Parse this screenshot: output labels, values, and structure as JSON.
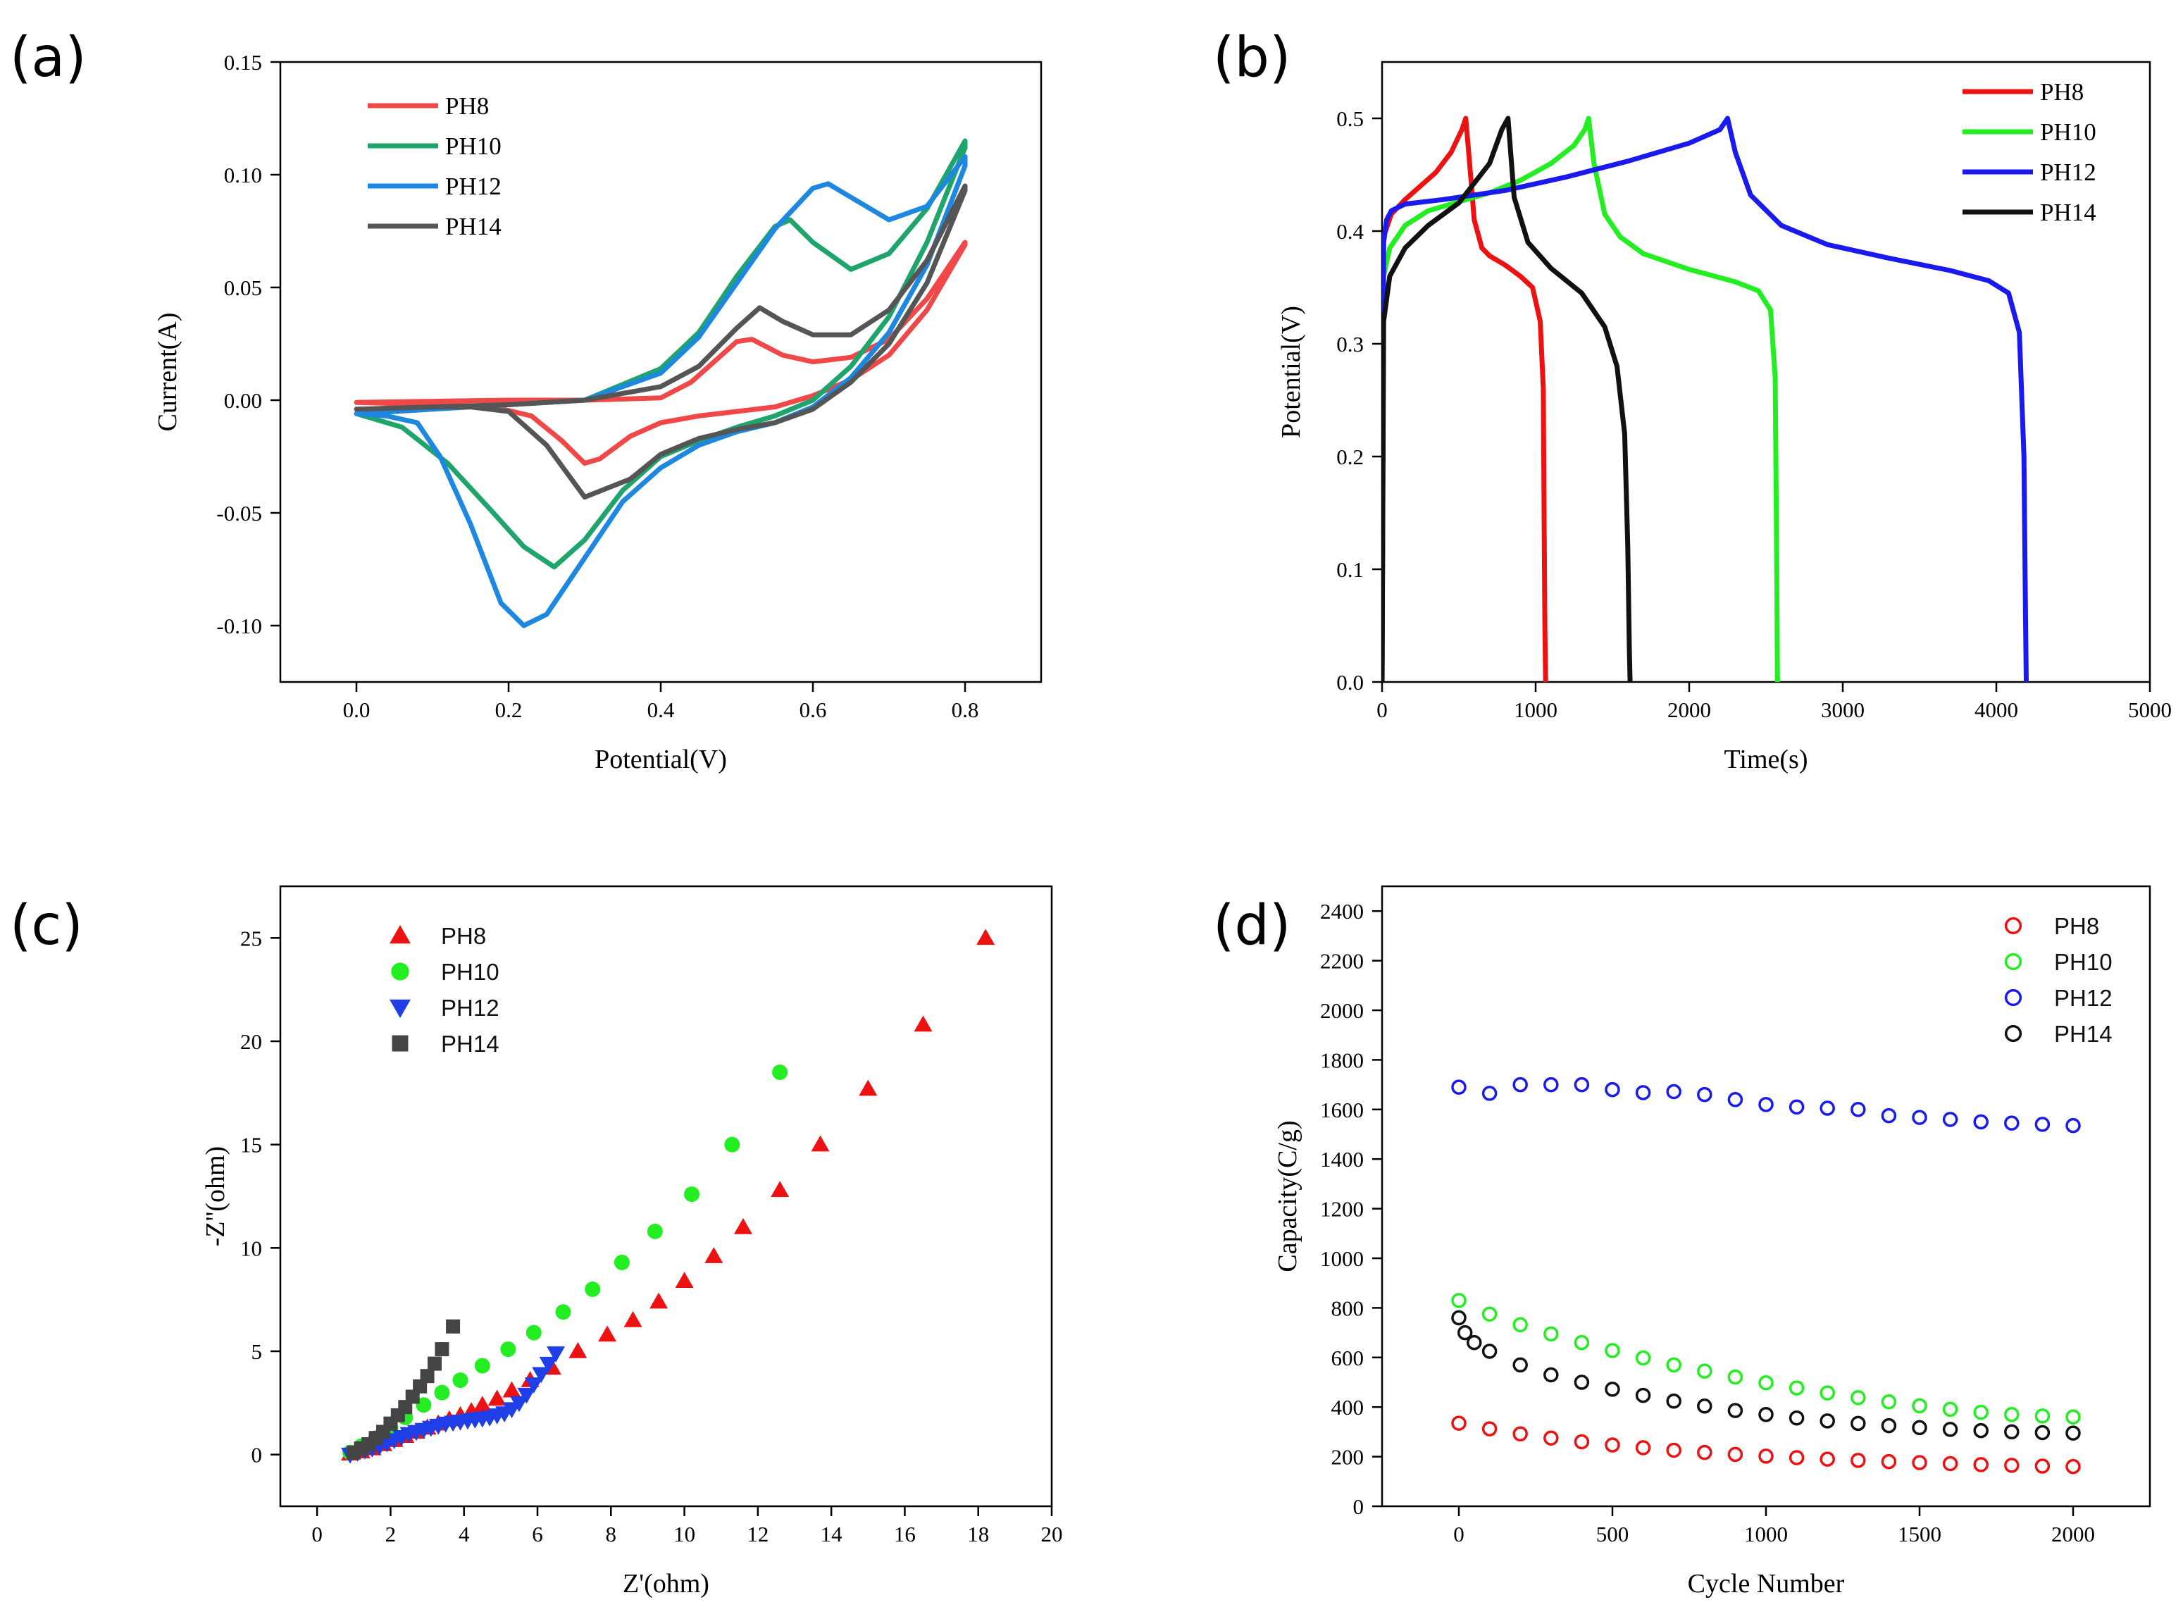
{
  "panels": {
    "a": "(a)",
    "b": "(b)",
    "c": "(c)",
    "d": "(d)"
  },
  "chart_data": [
    {
      "id": "a",
      "type": "line",
      "title": "",
      "xlabel": "Potential(V)",
      "ylabel": "Current(A)",
      "xlim": [
        -0.1,
        0.9
      ],
      "ylim": [
        -0.125,
        0.15
      ],
      "xticks": [
        0.0,
        0.2,
        0.4,
        0.6,
        0.8
      ],
      "xtick_labels": [
        "0.0",
        "0.2",
        "0.4",
        "0.6",
        "0.8"
      ],
      "yticks": [
        -0.1,
        -0.05,
        0.0,
        0.05,
        0.1,
        0.15
      ],
      "ytick_labels": [
        "-0.10",
        "-0.05",
        "0.00",
        "0.05",
        "0.10",
        "0.15"
      ],
      "legend_position": "top-left",
      "series": [
        {
          "name": "PH8",
          "color": "#f04848",
          "x": [
            0.0,
            0.1,
            0.2,
            0.3,
            0.4,
            0.44,
            0.48,
            0.5,
            0.52,
            0.56,
            0.6,
            0.65,
            0.7,
            0.75,
            0.8,
            0.8,
            0.75,
            0.7,
            0.65,
            0.6,
            0.55,
            0.5,
            0.45,
            0.4,
            0.36,
            0.32,
            0.3,
            0.27,
            0.23,
            0.18,
            0.1,
            0.0
          ],
          "y": [
            -0.001,
            -0.0005,
            0.0,
            0.0,
            0.001,
            0.008,
            0.02,
            0.026,
            0.027,
            0.02,
            0.017,
            0.019,
            0.027,
            0.045,
            0.07,
            0.069,
            0.04,
            0.02,
            0.009,
            0.002,
            -0.003,
            -0.005,
            -0.007,
            -0.01,
            -0.016,
            -0.026,
            -0.028,
            -0.018,
            -0.007,
            -0.003,
            -0.002,
            -0.001
          ]
        },
        {
          "name": "PH10",
          "color": "#1fa56c",
          "x": [
            0.0,
            0.1,
            0.2,
            0.3,
            0.4,
            0.45,
            0.5,
            0.55,
            0.57,
            0.6,
            0.65,
            0.7,
            0.75,
            0.8,
            0.8,
            0.75,
            0.7,
            0.65,
            0.6,
            0.55,
            0.5,
            0.45,
            0.4,
            0.35,
            0.3,
            0.26,
            0.22,
            0.18,
            0.12,
            0.06,
            0.0
          ],
          "y": [
            -0.006,
            -0.004,
            -0.002,
            0.0,
            0.014,
            0.03,
            0.055,
            0.077,
            0.08,
            0.07,
            0.058,
            0.065,
            0.085,
            0.115,
            0.112,
            0.07,
            0.037,
            0.015,
            0.0,
            -0.007,
            -0.012,
            -0.018,
            -0.025,
            -0.04,
            -0.062,
            -0.074,
            -0.065,
            -0.05,
            -0.028,
            -0.012,
            -0.006
          ]
        },
        {
          "name": "PH12",
          "color": "#1e88e0",
          "x": [
            0.0,
            0.1,
            0.2,
            0.3,
            0.4,
            0.45,
            0.5,
            0.55,
            0.6,
            0.62,
            0.65,
            0.7,
            0.75,
            0.8,
            0.8,
            0.75,
            0.7,
            0.65,
            0.6,
            0.55,
            0.5,
            0.45,
            0.4,
            0.35,
            0.3,
            0.25,
            0.22,
            0.19,
            0.15,
            0.11,
            0.08,
            0.04,
            0.0
          ],
          "y": [
            -0.006,
            -0.004,
            -0.002,
            0.0,
            0.012,
            0.028,
            0.052,
            0.076,
            0.094,
            0.096,
            0.09,
            0.08,
            0.086,
            0.108,
            0.104,
            0.06,
            0.03,
            0.01,
            -0.003,
            -0.01,
            -0.014,
            -0.02,
            -0.03,
            -0.045,
            -0.07,
            -0.095,
            -0.1,
            -0.09,
            -0.055,
            -0.025,
            -0.01,
            -0.007,
            -0.006
          ]
        },
        {
          "name": "PH14",
          "color": "#555555",
          "x": [
            0.0,
            0.1,
            0.2,
            0.3,
            0.4,
            0.45,
            0.5,
            0.53,
            0.56,
            0.6,
            0.65,
            0.7,
            0.75,
            0.8,
            0.8,
            0.75,
            0.7,
            0.65,
            0.6,
            0.55,
            0.5,
            0.45,
            0.4,
            0.36,
            0.3,
            0.25,
            0.2,
            0.15,
            0.1,
            0.0
          ],
          "y": [
            -0.004,
            -0.003,
            -0.002,
            0.0,
            0.006,
            0.015,
            0.032,
            0.041,
            0.035,
            0.029,
            0.029,
            0.04,
            0.062,
            0.095,
            0.093,
            0.052,
            0.025,
            0.008,
            -0.004,
            -0.01,
            -0.013,
            -0.017,
            -0.024,
            -0.035,
            -0.043,
            -0.02,
            -0.005,
            -0.003,
            -0.003,
            -0.004
          ]
        }
      ]
    },
    {
      "id": "b",
      "type": "line",
      "title": "",
      "xlabel": "Time(s)",
      "ylabel": "Potential(V)",
      "xlim": [
        0,
        5000
      ],
      "ylim": [
        0.0,
        0.55
      ],
      "xticks": [
        0,
        1000,
        2000,
        3000,
        4000,
        5000
      ],
      "xtick_labels": [
        "0",
        "1000",
        "2000",
        "3000",
        "4000",
        "5000"
      ],
      "yticks": [
        0.0,
        0.1,
        0.2,
        0.3,
        0.4,
        0.5
      ],
      "ytick_labels": [
        "0.0",
        "0.1",
        "0.2",
        "0.3",
        "0.4",
        "0.5"
      ],
      "legend_position": "top-right",
      "series": [
        {
          "name": "PH8",
          "color": "#ee1111",
          "x": [
            0,
            10,
            60,
            150,
            250,
            350,
            450,
            520,
            545,
            570,
            600,
            650,
            700,
            800,
            900,
            980,
            1030,
            1050,
            1055,
            1060,
            1065
          ],
          "y": [
            0.0,
            0.395,
            0.415,
            0.428,
            0.44,
            0.452,
            0.47,
            0.49,
            0.5,
            0.46,
            0.41,
            0.385,
            0.378,
            0.37,
            0.36,
            0.35,
            0.32,
            0.26,
            0.15,
            0.05,
            0.0
          ]
        },
        {
          "name": "PH10",
          "color": "#22ee22",
          "x": [
            0,
            10,
            50,
            150,
            300,
            500,
            700,
            900,
            1100,
            1250,
            1320,
            1345,
            1380,
            1450,
            1550,
            1700,
            2000,
            2300,
            2450,
            2530,
            2560,
            2570,
            2575
          ],
          "y": [
            0.0,
            0.36,
            0.385,
            0.405,
            0.418,
            0.426,
            0.434,
            0.445,
            0.46,
            0.476,
            0.49,
            0.5,
            0.46,
            0.415,
            0.395,
            0.38,
            0.366,
            0.355,
            0.347,
            0.33,
            0.27,
            0.1,
            0.0
          ]
        },
        {
          "name": "PH12",
          "color": "#1a1aee",
          "x": [
            0,
            10,
            30,
            60,
            150,
            400,
            800,
            1200,
            1600,
            2000,
            2200,
            2250,
            2300,
            2400,
            2600,
            2900,
            3300,
            3700,
            3950,
            4080,
            4150,
            4180,
            4190,
            4195
          ],
          "y": [
            0.0,
            0.39,
            0.41,
            0.418,
            0.424,
            0.428,
            0.436,
            0.448,
            0.462,
            0.478,
            0.49,
            0.5,
            0.47,
            0.432,
            0.405,
            0.388,
            0.376,
            0.365,
            0.356,
            0.345,
            0.31,
            0.2,
            0.06,
            0.0
          ]
        },
        {
          "name": "PH14",
          "color": "#111111",
          "x": [
            0,
            10,
            50,
            150,
            300,
            500,
            700,
            780,
            820,
            860,
            950,
            1100,
            1300,
            1450,
            1530,
            1580,
            1600,
            1610,
            1615
          ],
          "y": [
            0.0,
            0.32,
            0.36,
            0.385,
            0.405,
            0.425,
            0.46,
            0.49,
            0.5,
            0.43,
            0.39,
            0.367,
            0.345,
            0.315,
            0.28,
            0.22,
            0.12,
            0.03,
            0.0
          ]
        }
      ]
    },
    {
      "id": "c",
      "type": "scatter",
      "title": "",
      "xlabel": "Z'(ohm)",
      "ylabel": "-Z''(ohm)",
      "xlim": [
        -1,
        20
      ],
      "ylim": [
        -2.5,
        27.5
      ],
      "xticks": [
        0,
        2,
        4,
        6,
        8,
        10,
        12,
        14,
        16,
        18,
        20
      ],
      "xtick_labels": [
        "0",
        "2",
        "4",
        "6",
        "8",
        "10",
        "12",
        "14",
        "16",
        "18",
        "20"
      ],
      "yticks": [
        0,
        5,
        10,
        15,
        20,
        25
      ],
      "ytick_labels": [
        "0",
        "5",
        "10",
        "15",
        "20",
        "25"
      ],
      "legend_position": "top-left",
      "series": [
        {
          "name": "PH8",
          "color": "#ee1111",
          "marker": "triangle-up",
          "x": [
            0.9,
            1.2,
            1.5,
            1.8,
            2.1,
            2.4,
            2.7,
            3.0,
            3.3,
            3.6,
            3.9,
            4.2,
            4.5,
            4.9,
            5.3,
            5.8,
            6.4,
            7.1,
            7.9,
            8.6,
            9.3,
            10.0,
            10.8,
            11.6,
            12.6,
            13.7,
            15.0,
            16.5,
            18.2
          ],
          "y": [
            0.05,
            0.15,
            0.3,
            0.5,
            0.7,
            0.9,
            1.1,
            1.3,
            1.5,
            1.7,
            1.9,
            2.1,
            2.4,
            2.7,
            3.1,
            3.6,
            4.2,
            5.0,
            5.8,
            6.5,
            7.4,
            8.4,
            9.6,
            11.0,
            12.8,
            15.0,
            17.7,
            20.8,
            25.0
          ]
        },
        {
          "name": "PH10",
          "color": "#22ee22",
          "marker": "circle",
          "x": [
            0.9,
            1.2,
            1.6,
            2.0,
            2.4,
            2.9,
            3.4,
            3.9,
            4.5,
            5.2,
            5.9,
            6.7,
            7.5,
            8.3,
            9.2,
            10.2,
            11.3,
            12.6
          ],
          "y": [
            0.1,
            0.4,
            0.8,
            1.3,
            1.8,
            2.4,
            3.0,
            3.6,
            4.3,
            5.1,
            5.9,
            6.9,
            8.0,
            9.3,
            10.8,
            12.6,
            15.0,
            18.5
          ]
        },
        {
          "name": "PH12",
          "color": "#1f3ee8",
          "marker": "triangle-down",
          "x": [
            0.9,
            1.1,
            1.3,
            1.5,
            1.7,
            1.9,
            2.1,
            2.3,
            2.5,
            2.7,
            2.9,
            3.1,
            3.3,
            3.5,
            3.7,
            3.9,
            4.1,
            4.3,
            4.5,
            4.7,
            4.9,
            5.1,
            5.3,
            5.5,
            5.7,
            5.9,
            6.1,
            6.3,
            6.5
          ],
          "y": [
            0.0,
            0.1,
            0.2,
            0.3,
            0.4,
            0.55,
            0.7,
            0.85,
            1.0,
            1.1,
            1.2,
            1.3,
            1.4,
            1.5,
            1.55,
            1.6,
            1.65,
            1.7,
            1.75,
            1.8,
            1.9,
            2.0,
            2.2,
            2.5,
            2.9,
            3.4,
            3.9,
            4.4,
            4.9
          ]
        },
        {
          "name": "PH14",
          "color": "#444444",
          "marker": "square",
          "x": [
            1.0,
            1.2,
            1.4,
            1.6,
            1.8,
            2.0,
            2.2,
            2.4,
            2.6,
            2.8,
            3.0,
            3.2,
            3.4,
            3.7
          ],
          "y": [
            0.1,
            0.3,
            0.5,
            0.8,
            1.1,
            1.5,
            1.9,
            2.3,
            2.8,
            3.3,
            3.8,
            4.4,
            5.1,
            6.2
          ]
        }
      ]
    },
    {
      "id": "d",
      "type": "scatter",
      "title": "",
      "xlabel": "Cycle Number",
      "ylabel": "Capacity(C/g)",
      "xlim": [
        -250,
        2250
      ],
      "ylim": [
        0,
        2500
      ],
      "xticks": [
        0,
        500,
        1000,
        1500,
        2000
      ],
      "xtick_labels": [
        "0",
        "500",
        "1000",
        "1500",
        "2000"
      ],
      "yticks": [
        0,
        200,
        400,
        600,
        800,
        1000,
        1200,
        1400,
        1600,
        1800,
        2000,
        2200,
        2400
      ],
      "ytick_labels": [
        "0",
        "200",
        "400",
        "600",
        "800",
        "1000",
        "1200",
        "1400",
        "1600",
        "1800",
        "2000",
        "2200",
        "2400"
      ],
      "legend_position": "top-right",
      "series": [
        {
          "name": "PH8",
          "color": "#ee1111",
          "marker": "open-circle",
          "x": [
            0,
            100,
            200,
            300,
            400,
            500,
            600,
            700,
            800,
            900,
            1000,
            1100,
            1200,
            1300,
            1400,
            1500,
            1600,
            1700,
            1800,
            1900,
            2000
          ],
          "y": [
            335,
            312,
            292,
            275,
            260,
            247,
            236,
            226,
            217,
            209,
            202,
            196,
            190,
            185,
            180,
            176,
            172,
            168,
            165,
            162,
            160
          ]
        },
        {
          "name": "PH10",
          "color": "#22ee22",
          "marker": "open-circle",
          "x": [
            0,
            100,
            200,
            300,
            400,
            500,
            600,
            700,
            800,
            900,
            1000,
            1100,
            1200,
            1300,
            1400,
            1500,
            1600,
            1700,
            1800,
            1900,
            2000
          ],
          "y": [
            830,
            775,
            732,
            695,
            660,
            628,
            598,
            570,
            545,
            521,
            498,
            477,
            457,
            438,
            421,
            405,
            391,
            379,
            370,
            364,
            360
          ]
        },
        {
          "name": "PH12",
          "color": "#1a1aee",
          "marker": "open-circle",
          "x": [
            0,
            100,
            200,
            300,
            400,
            500,
            600,
            700,
            800,
            900,
            1000,
            1100,
            1200,
            1300,
            1400,
            1500,
            1600,
            1700,
            1800,
            1900,
            2000
          ],
          "y": [
            1690,
            1665,
            1700,
            1700,
            1700,
            1680,
            1668,
            1672,
            1660,
            1640,
            1620,
            1610,
            1605,
            1600,
            1575,
            1568,
            1560,
            1550,
            1545,
            1540,
            1535
          ]
        },
        {
          "name": "PH14",
          "color": "#111111",
          "marker": "open-circle",
          "x": [
            0,
            20,
            50,
            100,
            200,
            300,
            400,
            500,
            600,
            700,
            800,
            900,
            1000,
            1100,
            1200,
            1300,
            1400,
            1500,
            1600,
            1700,
            1800,
            1900,
            2000
          ],
          "y": [
            760,
            700,
            660,
            625,
            570,
            530,
            500,
            472,
            447,
            424,
            404,
            386,
            370,
            356,
            344,
            334,
            325,
            317,
            310,
            305,
            300,
            297,
            295
          ]
        }
      ]
    }
  ]
}
